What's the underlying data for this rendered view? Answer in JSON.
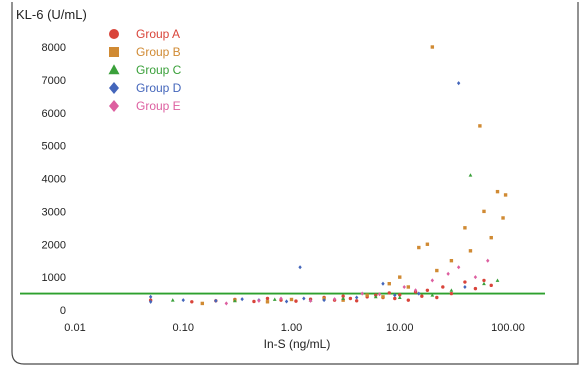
{
  "chart_data": {
    "type": "scatter",
    "ylabel": "KL-6 (U/mL)",
    "xlabel": "In-S (ng/mL)",
    "x_scale": "log",
    "xlim": [
      0.01,
      100
    ],
    "ylim": [
      0,
      8000
    ],
    "x_ticks": [
      0.01,
      0.1,
      1,
      10,
      100
    ],
    "x_tick_labels": [
      "0.01",
      "0.10",
      "1.00",
      "10.00",
      "100.00"
    ],
    "y_ticks": [
      0,
      1000,
      2000,
      3000,
      4000,
      5000,
      6000,
      7000,
      8000
    ],
    "y_tick_labels": [
      "0",
      "1000",
      "2000",
      "3000",
      "4000",
      "5000",
      "6000",
      "7000",
      "8000"
    ],
    "grid": false,
    "legend_position": "top-left",
    "reference_line": {
      "y": 500,
      "color": "#2ea02e"
    },
    "series": [
      {
        "name": "Group A",
        "color": "#d9443a",
        "marker": "circle",
        "points": [
          [
            0.05,
            300
          ],
          [
            0.12,
            250
          ],
          [
            0.2,
            280
          ],
          [
            0.3,
            320
          ],
          [
            0.45,
            260
          ],
          [
            0.6,
            350
          ],
          [
            0.8,
            300
          ],
          [
            1.1,
            270
          ],
          [
            1.5,
            330
          ],
          [
            2.0,
            380
          ],
          [
            2.5,
            300
          ],
          [
            3.0,
            420
          ],
          [
            3.5,
            350
          ],
          [
            4.0,
            280
          ],
          [
            5.0,
            400
          ],
          [
            6.0,
            450
          ],
          [
            7.0,
            380
          ],
          [
            8.0,
            520
          ],
          [
            9.0,
            350
          ],
          [
            10.0,
            460
          ],
          [
            12.0,
            300
          ],
          [
            14.0,
            550
          ],
          [
            16.0,
            420
          ],
          [
            18.0,
            600
          ],
          [
            22.0,
            380
          ],
          [
            25.0,
            700
          ],
          [
            30.0,
            500
          ],
          [
            40.0,
            850
          ],
          [
            50.0,
            650
          ],
          [
            60.0,
            900
          ],
          [
            70.0,
            750
          ]
        ]
      },
      {
        "name": "Group B",
        "color": "#d08a33",
        "marker": "square",
        "points": [
          [
            0.15,
            200
          ],
          [
            0.3,
            300
          ],
          [
            0.6,
            250
          ],
          [
            1.0,
            320
          ],
          [
            2.0,
            350
          ],
          [
            3.0,
            300
          ],
          [
            5.0,
            450
          ],
          [
            7.0,
            400
          ],
          [
            8.0,
            800
          ],
          [
            10.0,
            1000
          ],
          [
            12.0,
            700
          ],
          [
            15.0,
            1900
          ],
          [
            18.0,
            2000
          ],
          [
            20.0,
            8000
          ],
          [
            22.0,
            1200
          ],
          [
            30.0,
            1500
          ],
          [
            40.0,
            2500
          ],
          [
            45.0,
            1800
          ],
          [
            55.0,
            5600
          ],
          [
            60.0,
            3000
          ],
          [
            70.0,
            2200
          ],
          [
            80.0,
            3600
          ],
          [
            90.0,
            2800
          ],
          [
            95.0,
            3500
          ]
        ]
      },
      {
        "name": "Group C",
        "color": "#3aa03a",
        "marker": "triangle",
        "points": [
          [
            0.08,
            300
          ],
          [
            0.3,
            280
          ],
          [
            0.7,
            320
          ],
          [
            1.5,
            300
          ],
          [
            3.0,
            350
          ],
          [
            6.0,
            400
          ],
          [
            10.0,
            380
          ],
          [
            20.0,
            450
          ],
          [
            30.0,
            600
          ],
          [
            45.0,
            4100
          ],
          [
            60.0,
            800
          ],
          [
            80.0,
            900
          ]
        ]
      },
      {
        "name": "Group D",
        "color": "#4466bb",
        "marker": "diamond",
        "points": [
          [
            0.05,
            400
          ],
          [
            0.05,
            250
          ],
          [
            0.1,
            300
          ],
          [
            0.2,
            280
          ],
          [
            0.35,
            330
          ],
          [
            0.5,
            300
          ],
          [
            0.9,
            260
          ],
          [
            1.2,
            1300
          ],
          [
            1.3,
            350
          ],
          [
            2.0,
            300
          ],
          [
            4.0,
            380
          ],
          [
            7.0,
            800
          ],
          [
            9.0,
            450
          ],
          [
            15.0,
            500
          ],
          [
            35.0,
            6900
          ],
          [
            40.0,
            700
          ]
        ]
      },
      {
        "name": "Group E",
        "color": "#dd5fa0",
        "marker": "diamond",
        "points": [
          [
            0.25,
            200
          ],
          [
            0.5,
            280
          ],
          [
            0.8,
            350
          ],
          [
            1.5,
            280
          ],
          [
            2.5,
            330
          ],
          [
            4.5,
            500
          ],
          [
            6.5,
            480
          ],
          [
            11.0,
            700
          ],
          [
            14.0,
            600
          ],
          [
            20.0,
            900
          ],
          [
            28.0,
            1100
          ],
          [
            35.0,
            1300
          ],
          [
            50.0,
            1000
          ],
          [
            65.0,
            1500
          ]
        ]
      }
    ]
  }
}
